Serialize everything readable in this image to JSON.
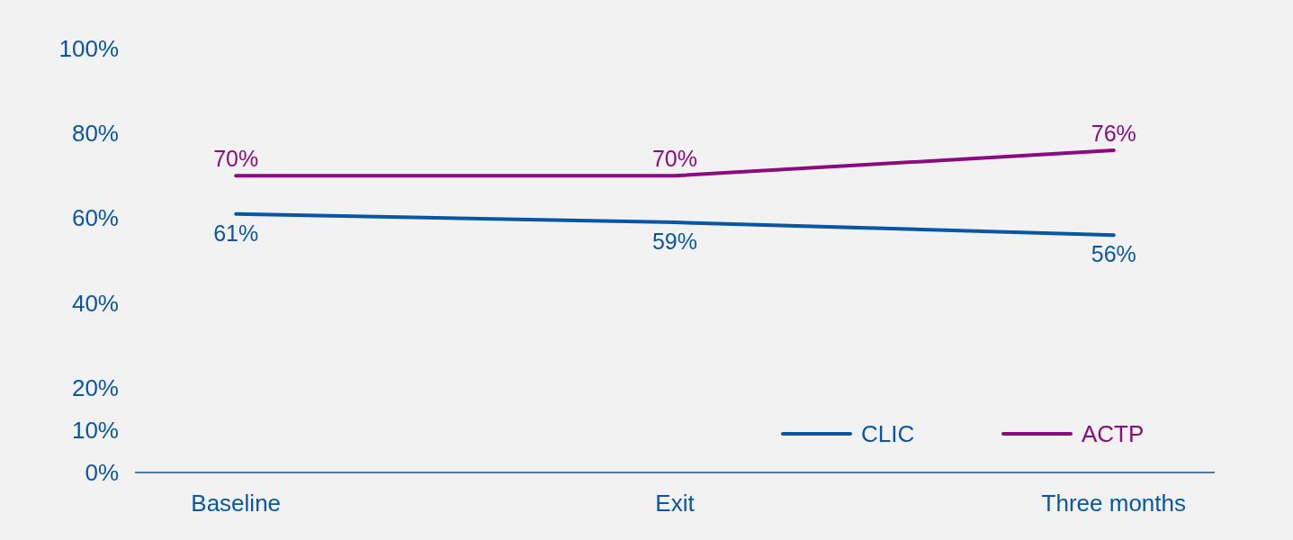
{
  "chart_data": {
    "type": "line",
    "categories": [
      "Baseline",
      "Exit",
      "Three months"
    ],
    "series": [
      {
        "name": "CLIC",
        "color": "#0a56a5",
        "values": [
          61,
          59,
          56
        ],
        "value_labels": [
          "61%",
          "59%",
          "56%"
        ]
      },
      {
        "name": "ACTP",
        "color": "#8a0c80",
        "values": [
          70,
          70,
          76
        ],
        "value_labels": [
          "70%",
          "70%",
          "76%"
        ]
      }
    ],
    "ylim": [
      0,
      100
    ],
    "yticks": [
      {
        "value": 0,
        "label": "0%"
      },
      {
        "value": 10,
        "label": "10%"
      },
      {
        "value": 20,
        "label": "20%"
      },
      {
        "value": 40,
        "label": "40%"
      },
      {
        "value": 60,
        "label": "60%"
      },
      {
        "value": 80,
        "label": "80%"
      },
      {
        "value": 100,
        "label": "100%"
      }
    ],
    "legend": "bottom right",
    "grid": false,
    "marker": "none",
    "line_style": "solid"
  }
}
